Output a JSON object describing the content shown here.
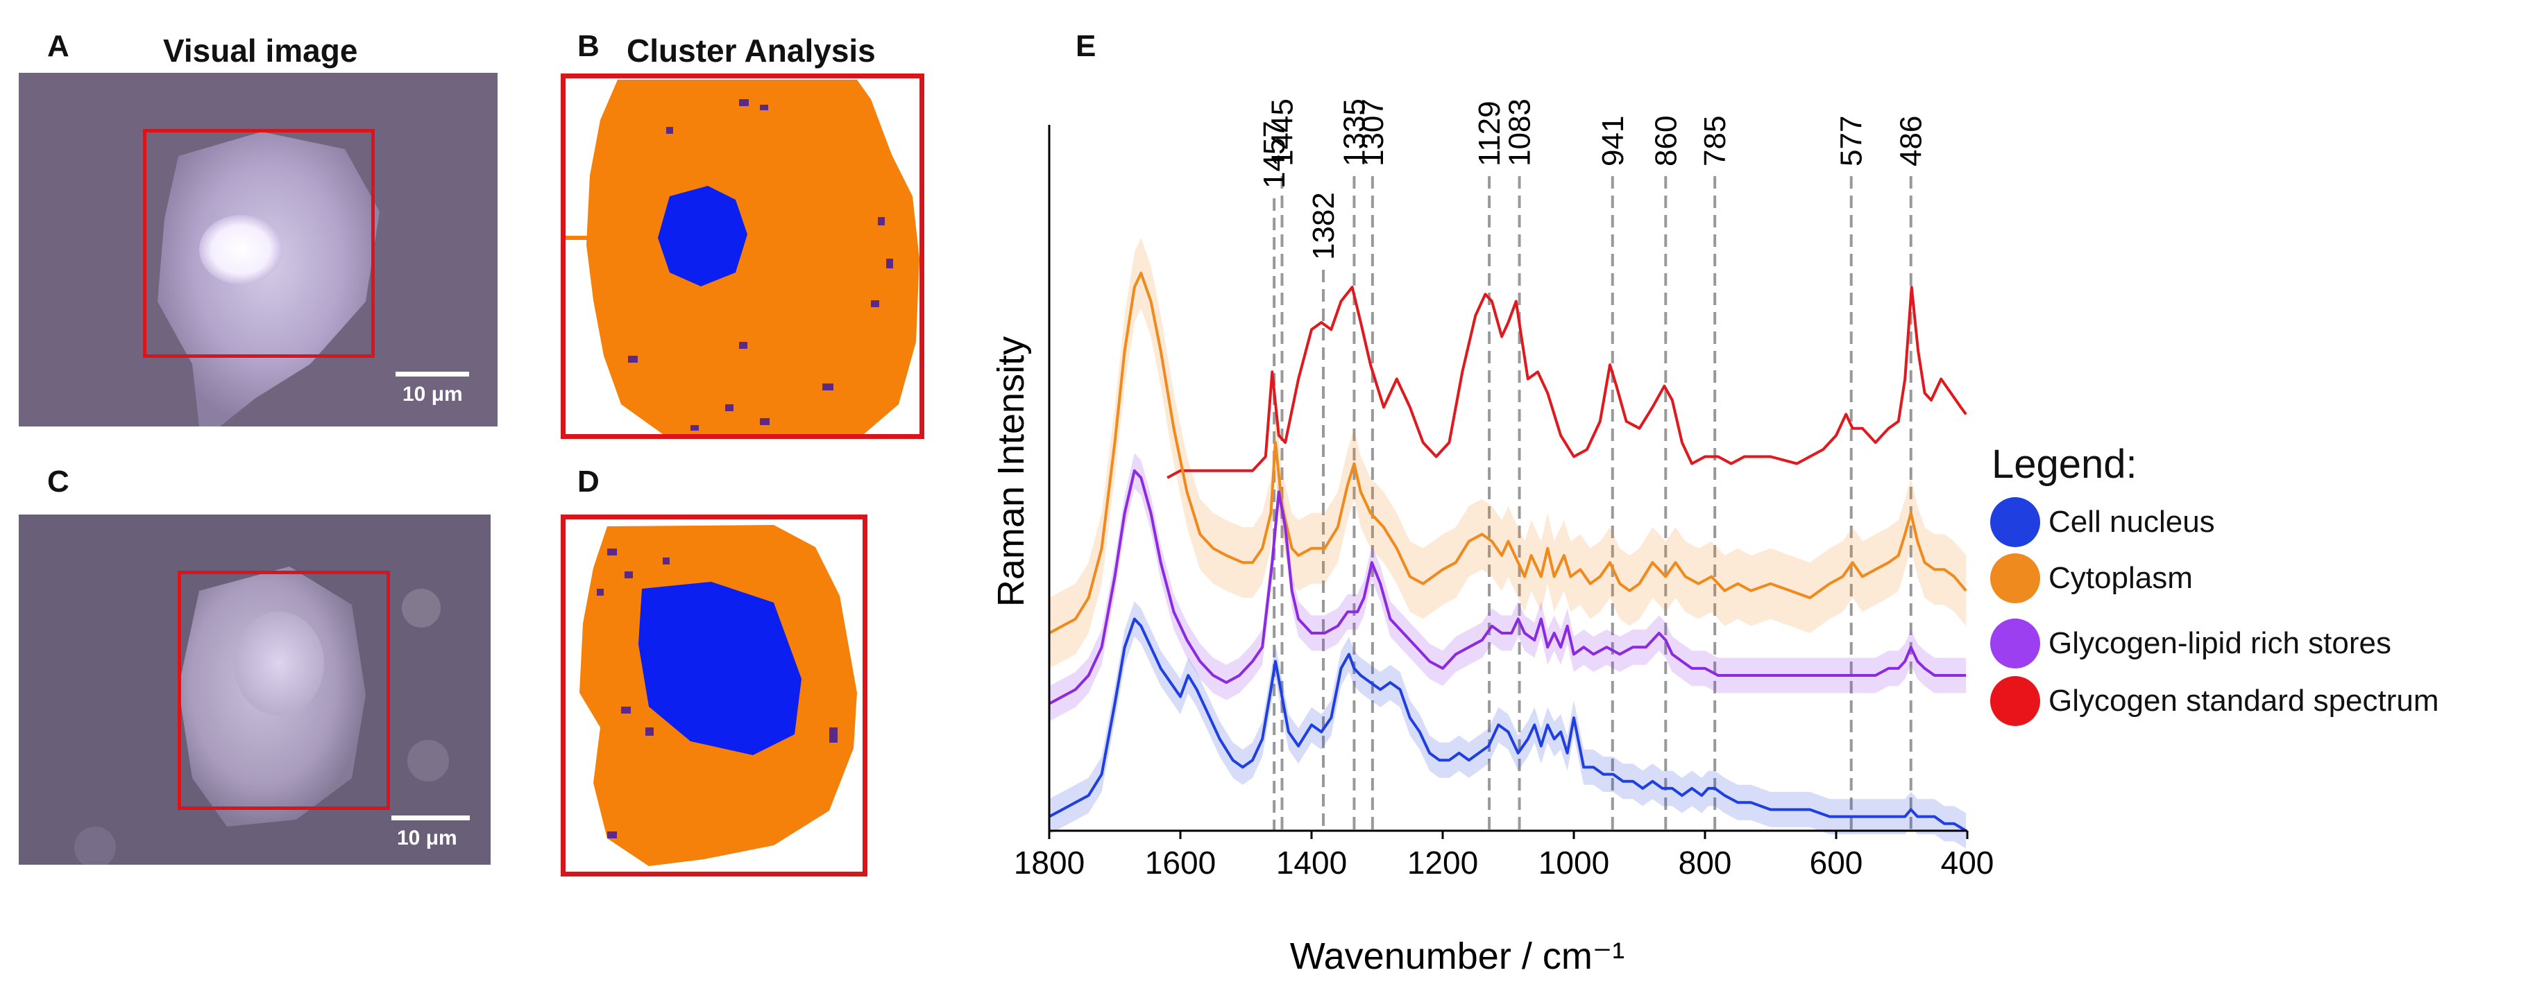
{
  "panels": {
    "A": {
      "letter": "A",
      "title": "Visual image",
      "scale": "10 μm"
    },
    "B": {
      "letter": "B",
      "title": "Cluster Analysis"
    },
    "C": {
      "letter": "C",
      "scale": "10 μm"
    },
    "D": {
      "letter": "D"
    },
    "E": {
      "letter": "E"
    }
  },
  "colors": {
    "nucleus": "#1f3fe0",
    "cytoplasm": "#ef8a1e",
    "glycogen_lipid": "#8a2be2",
    "glycogen_standard": "#e0191e",
    "cluster_nucleus": "#0a1ff0",
    "cluster_cytoplasm": "#f5800a",
    "cluster_specks": "#5b2a86",
    "frame": "#d9141a",
    "guide": "#999999"
  },
  "legend": {
    "title": "Legend:",
    "items": [
      {
        "label": "Cell nucleus",
        "color": "#1f3fe0"
      },
      {
        "label": "Cytoplasm",
        "color": "#ef8a1e"
      },
      {
        "label": "Glycogen-lipid rich stores",
        "color": "#9b3ff0"
      },
      {
        "label": "Glycogen standard spectrum",
        "color": "#e8141a"
      }
    ]
  },
  "chart_data": {
    "type": "line",
    "xlabel": "Wavenumber / cm⁻¹",
    "ylabel": "Raman Intensity",
    "xlim": [
      1800,
      400
    ],
    "ylim": [
      0,
      100
    ],
    "xticks": [
      1800,
      1600,
      1400,
      1200,
      1000,
      800,
      600,
      400
    ],
    "tick_labels": [
      "1800",
      "1600",
      "1400",
      "1200",
      "1000",
      "800",
      "600",
      "400"
    ],
    "peak_lines": [
      {
        "x": 1457,
        "label": "1457",
        "level": 1
      },
      {
        "x": 1445,
        "label": "1445",
        "level": 0
      },
      {
        "x": 1382,
        "label": "1382",
        "level": 2
      },
      {
        "x": 1335,
        "label": "1335",
        "level": 0
      },
      {
        "x": 1307,
        "label": "1307",
        "level": 0
      },
      {
        "x": 1129,
        "label": "1129",
        "level": 0
      },
      {
        "x": 1083,
        "label": "1083",
        "level": 0
      },
      {
        "x": 941,
        "label": "941",
        "level": 0
      },
      {
        "x": 860,
        "label": "860",
        "level": 0
      },
      {
        "x": 785,
        "label": "785",
        "level": 0
      },
      {
        "x": 577,
        "label": "577",
        "level": 0
      },
      {
        "x": 486,
        "label": "486",
        "level": 0
      }
    ],
    "series": [
      {
        "name": "Glycogen standard spectrum",
        "color": "#e0191e",
        "x": [
          1620,
          1600,
          1560,
          1520,
          1490,
          1470,
          1460,
          1450,
          1440,
          1420,
          1400,
          1385,
          1370,
          1355,
          1338,
          1325,
          1310,
          1290,
          1270,
          1250,
          1230,
          1210,
          1190,
          1170,
          1150,
          1135,
          1125,
          1110,
          1100,
          1088,
          1080,
          1070,
          1055,
          1040,
          1020,
          1000,
          980,
          960,
          945,
          935,
          920,
          900,
          880,
          862,
          850,
          835,
          820,
          800,
          780,
          760,
          740,
          700,
          660,
          620,
          600,
          585,
          575,
          560,
          540,
          520,
          505,
          495,
          485,
          475,
          465,
          455,
          440,
          425,
          410,
          402
        ],
        "y": [
          50,
          51,
          51,
          51,
          51,
          53,
          65,
          56,
          55,
          64,
          71,
          72,
          71,
          75,
          77,
          72,
          66,
          60,
          64,
          60,
          55,
          53,
          55,
          65,
          73,
          76,
          75,
          70,
          72,
          75,
          70,
          64,
          65,
          62,
          56,
          53,
          54,
          58,
          66,
          63,
          58,
          57,
          60,
          63,
          61,
          55,
          52,
          53,
          53,
          52,
          53,
          53,
          52,
          54,
          56,
          59,
          57,
          57,
          55,
          57,
          58,
          64,
          77,
          68,
          62,
          61,
          64,
          62,
          60,
          59
        ]
      },
      {
        "name": "Cytoplasm",
        "color": "#ef8a1e",
        "x": [
          1800,
          1760,
          1740,
          1720,
          1700,
          1685,
          1670,
          1660,
          1645,
          1630,
          1610,
          1590,
          1570,
          1550,
          1530,
          1505,
          1490,
          1475,
          1462,
          1455,
          1445,
          1430,
          1420,
          1400,
          1380,
          1360,
          1345,
          1335,
          1325,
          1310,
          1290,
          1270,
          1250,
          1230,
          1200,
          1180,
          1160,
          1140,
          1125,
          1110,
          1100,
          1085,
          1075,
          1065,
          1050,
          1040,
          1030,
          1015,
          1005,
          990,
          975,
          960,
          945,
          930,
          915,
          900,
          880,
          860,
          845,
          830,
          810,
          790,
          770,
          750,
          730,
          700,
          670,
          640,
          610,
          590,
          575,
          560,
          540,
          520,
          505,
          495,
          486,
          476,
          465,
          450,
          435,
          420,
          402
        ],
        "y": [
          28,
          30,
          33,
          40,
          55,
          68,
          77,
          79,
          75,
          68,
          57,
          48,
          42,
          40,
          39,
          38,
          38,
          40,
          45,
          55,
          46,
          40,
          39,
          40,
          40,
          43,
          49,
          52,
          48,
          45,
          43,
          40,
          36,
          35,
          37,
          38,
          41,
          42,
          41,
          39,
          41,
          38,
          36,
          39,
          36,
          40,
          36,
          39,
          36,
          37,
          35,
          36,
          38,
          35,
          34,
          35,
          38,
          36,
          38,
          36,
          35,
          36,
          34,
          35,
          34,
          35,
          34,
          33,
          35,
          36,
          38,
          36,
          37,
          38,
          39,
          42,
          45,
          41,
          38,
          37,
          37,
          36,
          34
        ]
      },
      {
        "name": "Glycogen-lipid rich stores",
        "color": "#8a2be2",
        "x": [
          1800,
          1760,
          1740,
          1720,
          1700,
          1685,
          1670,
          1660,
          1645,
          1630,
          1610,
          1590,
          1570,
          1550,
          1530,
          1510,
          1490,
          1475,
          1460,
          1450,
          1440,
          1430,
          1420,
          1400,
          1380,
          1360,
          1345,
          1330,
          1320,
          1308,
          1295,
          1280,
          1260,
          1240,
          1220,
          1200,
          1180,
          1160,
          1140,
          1125,
          1110,
          1095,
          1085,
          1075,
          1060,
          1050,
          1040,
          1030,
          1020,
          1010,
          1000,
          985,
          970,
          950,
          930,
          910,
          890,
          870,
          860,
          850,
          835,
          820,
          800,
          780,
          760,
          740,
          700,
          660,
          620,
          600,
          580,
          560,
          540,
          520,
          505,
          495,
          486,
          476,
          465,
          450,
          435,
          420,
          402
        ],
        "y": [
          18,
          20,
          22,
          26,
          36,
          45,
          51,
          50,
          45,
          38,
          31,
          27,
          24,
          22,
          21,
          22,
          24,
          26,
          38,
          48,
          43,
          34,
          30,
          28,
          28,
          29,
          31,
          31,
          33,
          38,
          35,
          30,
          28,
          26,
          24,
          23,
          25,
          26,
          27,
          29,
          28,
          28,
          30,
          28,
          27,
          30,
          26,
          28,
          26,
          29,
          25,
          26,
          25,
          26,
          25,
          26,
          26,
          28,
          27,
          25,
          24,
          23,
          23,
          22,
          22,
          22,
          22,
          22,
          22,
          22,
          22,
          22,
          22,
          23,
          23,
          24,
          26,
          24,
          23,
          22,
          22,
          22,
          22
        ]
      },
      {
        "name": "Cell nucleus",
        "color": "#1f3fe0",
        "x": [
          1800,
          1780,
          1760,
          1740,
          1720,
          1700,
          1685,
          1670,
          1660,
          1645,
          1630,
          1615,
          1600,
          1588,
          1575,
          1560,
          1540,
          1520,
          1505,
          1490,
          1475,
          1462,
          1455,
          1445,
          1435,
          1420,
          1400,
          1385,
          1370,
          1355,
          1343,
          1335,
          1325,
          1310,
          1295,
          1280,
          1265,
          1250,
          1235,
          1220,
          1205,
          1190,
          1175,
          1160,
          1145,
          1130,
          1115,
          1100,
          1085,
          1070,
          1060,
          1050,
          1040,
          1030,
          1020,
          1010,
          1000,
          985,
          970,
          955,
          940,
          925,
          910,
          895,
          880,
          865,
          850,
          835,
          820,
          805,
          795,
          785,
          770,
          750,
          730,
          700,
          670,
          640,
          610,
          590,
          575,
          560,
          540,
          520,
          505,
          495,
          486,
          476,
          465,
          450,
          435,
          420,
          402
        ],
        "y": [
          2,
          3,
          4,
          5,
          8,
          18,
          26,
          30,
          29,
          26,
          23,
          21,
          19,
          22,
          20,
          17,
          13,
          10,
          9,
          10,
          13,
          20,
          24,
          19,
          14,
          12,
          15,
          14,
          16,
          23,
          25,
          23,
          22,
          21,
          20,
          21,
          20,
          16,
          14,
          11,
          10,
          10,
          11,
          10,
          11,
          12,
          15,
          14,
          11,
          13,
          15,
          12,
          15,
          13,
          14,
          11,
          16,
          9,
          9,
          8,
          8,
          7,
          7,
          6,
          7,
          6,
          6,
          5,
          6,
          5,
          6,
          6,
          5,
          4,
          4,
          3,
          3,
          3,
          2,
          2,
          2,
          2,
          2,
          2,
          2,
          2,
          3,
          2,
          2,
          2,
          1,
          1,
          0
        ]
      }
    ]
  }
}
